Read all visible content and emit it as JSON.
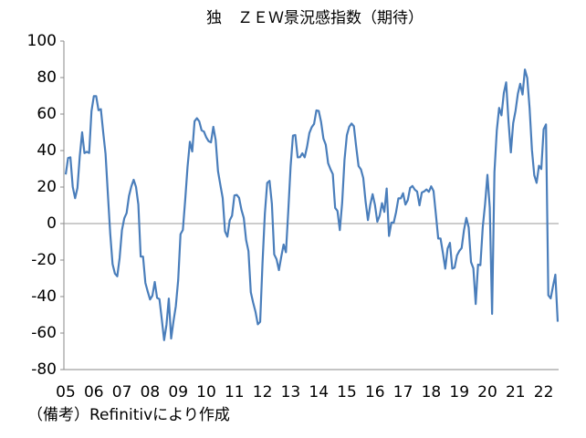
{
  "chart_data": {
    "type": "line",
    "title": "独　ＺＥＷ景況感指数（期待）",
    "note": "（備考）Refinitivにより作成",
    "categories": [
      "05",
      null,
      null,
      null,
      null,
      null,
      null,
      null,
      null,
      null,
      null,
      null,
      "06",
      null,
      null,
      null,
      null,
      null,
      null,
      null,
      null,
      null,
      null,
      null,
      "07",
      null,
      null,
      null,
      null,
      null,
      null,
      null,
      null,
      null,
      null,
      null,
      "08",
      null,
      null,
      null,
      null,
      null,
      null,
      null,
      null,
      null,
      null,
      null,
      "09",
      null,
      null,
      null,
      null,
      null,
      null,
      null,
      null,
      null,
      null,
      null,
      "10",
      null,
      null,
      null,
      null,
      null,
      null,
      null,
      null,
      null,
      null,
      null,
      "11",
      null,
      null,
      null,
      null,
      null,
      null,
      null,
      null,
      null,
      null,
      null,
      "12",
      null,
      null,
      null,
      null,
      null,
      null,
      null,
      null,
      null,
      null,
      null,
      "13",
      null,
      null,
      null,
      null,
      null,
      null,
      null,
      null,
      null,
      null,
      null,
      "14",
      null,
      null,
      null,
      null,
      null,
      null,
      null,
      null,
      null,
      null,
      null,
      "15",
      null,
      null,
      null,
      null,
      null,
      null,
      null,
      null,
      null,
      null,
      null,
      "16",
      null,
      null,
      null,
      null,
      null,
      null,
      null,
      null,
      null,
      null,
      null,
      "17",
      null,
      null,
      null,
      null,
      null,
      null,
      null,
      null,
      null,
      null,
      null,
      "18",
      null,
      null,
      null,
      null,
      null,
      null,
      null,
      null,
      null,
      null,
      null,
      "19",
      null,
      null,
      null,
      null,
      null,
      null,
      null,
      null,
      null,
      null,
      null,
      "20",
      null,
      null,
      null,
      null,
      null,
      null,
      null,
      null,
      null,
      null,
      null,
      "21",
      null,
      null,
      null,
      null,
      null,
      null,
      null,
      null,
      null,
      null,
      null,
      "22",
      null,
      null,
      null,
      null,
      null,
      null
    ],
    "series": [
      {
        "color": "#4a7ebb",
        "values": [
          26.9,
          35.9,
          36.3,
          20.1,
          13.9,
          19.5,
          37.0,
          50.0,
          38.6,
          39.3,
          38.7,
          61.6,
          69.8,
          69.8,
          62.1,
          62.7,
          50.0,
          38.2,
          16.0,
          -5.6,
          -22.2,
          -27.4,
          -28.9,
          -19.0,
          -3.6,
          2.9,
          5.8,
          15.1,
          20.3,
          24.0,
          20.1,
          10.4,
          -18.1,
          -18.1,
          -32.5,
          -37.2,
          -41.6,
          -39.5,
          -32.0,
          -40.7,
          -41.4,
          -52.4,
          -63.9,
          -55.5,
          -41.1,
          -63.0,
          -53.5,
          -45.2,
          -31.0,
          -5.8,
          -3.5,
          13.0,
          31.1,
          44.8,
          39.5,
          56.1,
          57.7,
          56.0,
          51.1,
          50.4,
          47.2,
          45.1,
          44.5,
          53.0,
          45.8,
          28.7,
          21.2,
          14.0,
          -4.3,
          -7.2,
          1.8,
          4.3,
          15.4,
          15.7,
          14.1,
          7.6,
          3.1,
          -9.0,
          -15.1,
          -37.6,
          -43.3,
          -48.3,
          -55.2,
          -53.8,
          -21.6,
          5.4,
          22.3,
          23.4,
          10.8,
          -16.9,
          -19.6,
          -25.5,
          -18.2,
          -11.5,
          -15.7,
          6.9,
          31.5,
          48.2,
          48.5,
          36.3,
          36.4,
          38.5,
          36.3,
          42.0,
          49.6,
          52.8,
          54.6,
          62.0,
          61.7,
          55.7,
          46.6,
          43.2,
          33.1,
          29.8,
          27.1,
          8.6,
          6.9,
          -3.6,
          11.5,
          34.9,
          48.4,
          53.0,
          54.8,
          53.3,
          41.9,
          31.5,
          29.7,
          25.0,
          12.1,
          1.9,
          10.4,
          16.1,
          10.2,
          1.0,
          4.3,
          11.2,
          6.4,
          19.2,
          -6.8,
          0.5,
          0.5,
          6.2,
          13.8,
          13.8,
          16.6,
          10.4,
          12.8,
          19.5,
          20.6,
          18.6,
          17.5,
          10.0,
          17.0,
          17.6,
          18.7,
          17.4,
          20.4,
          17.8,
          5.1,
          -8.2,
          -8.2,
          -16.1,
          -24.7,
          -13.7,
          -10.6,
          -24.7,
          -24.1,
          -17.5,
          -15.0,
          -13.4,
          -3.6,
          3.1,
          -2.1,
          -21.1,
          -24.5,
          -44.1,
          -22.5,
          -22.8,
          -2.1,
          10.7,
          26.7,
          8.7,
          -49.5,
          28.2,
          51.0,
          63.4,
          59.3,
          71.5,
          77.4,
          56.1,
          39.0,
          55.0,
          61.8,
          71.2,
          76.6,
          70.7,
          84.4,
          79.8,
          63.3,
          40.4,
          26.5,
          22.3,
          31.7,
          29.9,
          51.7,
          54.3,
          -39.3,
          -41.0,
          -34.3,
          -28.0,
          -53.8
        ]
      }
    ],
    "ylim": [
      -80,
      100
    ],
    "yticks": [
      -80,
      -60,
      -40,
      -20,
      0,
      20,
      40,
      60,
      80,
      100
    ]
  }
}
